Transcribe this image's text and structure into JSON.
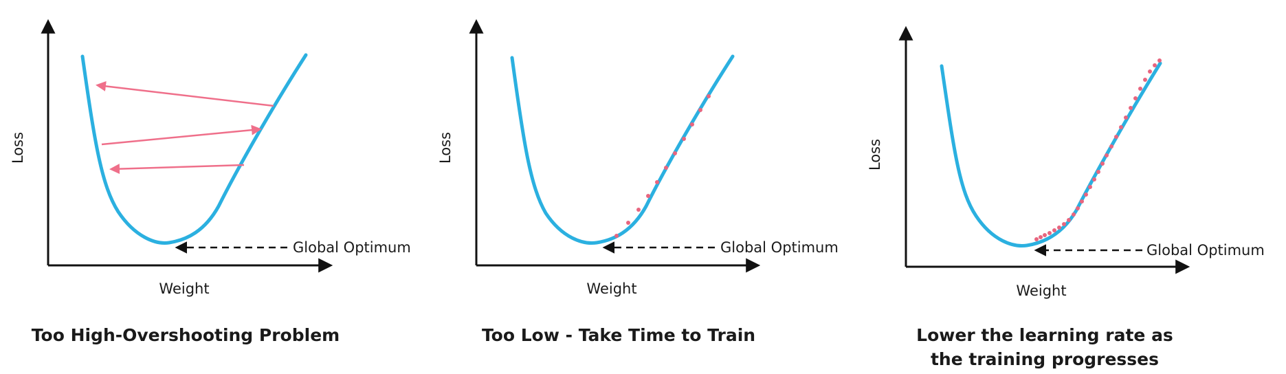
{
  "colors": {
    "curve": "#2bb0e0",
    "arrow_step": "#ef6f8a",
    "dots": "#e8657f",
    "axis": "#111111",
    "text": "#1a1a1a"
  },
  "panels": [
    {
      "caption": "Too High-Overshooting Problem",
      "y_label": "Loss",
      "x_label": "Weight",
      "annotation": "Global Optimum",
      "step_style": "arrows"
    },
    {
      "caption": "Too Low - Take Time to Train",
      "y_label": "Loss",
      "x_label": "Weight",
      "annotation": "Global Optimum",
      "step_style": "sparse-dots"
    },
    {
      "caption_line1": "Lower the learning rate as",
      "caption_line2": "the training progresses",
      "y_label": "Loss",
      "x_label": "Weight",
      "annotation": "Global Optimum",
      "step_style": "dense-dots"
    }
  ]
}
